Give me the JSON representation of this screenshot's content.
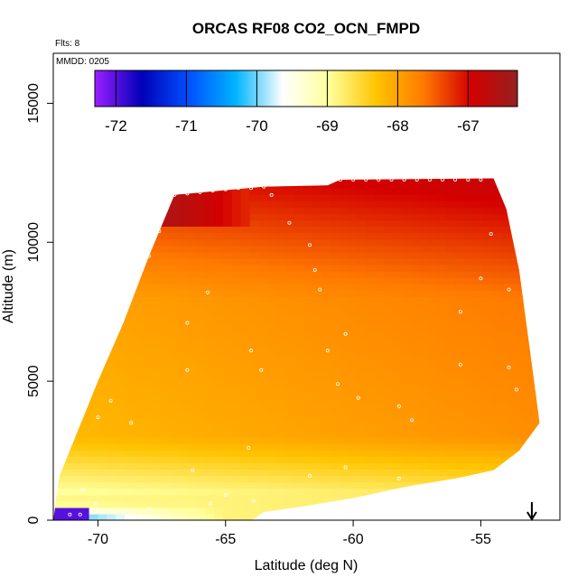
{
  "chart_data": {
    "type": "heatmap",
    "title": "ORCAS RF08 CO2_OCN_FMPD",
    "xlabel": "Latitude (deg N)",
    "ylabel": "Altitude (m)",
    "xlim": [
      -71.75,
      -51.9
    ],
    "ylim": [
      0,
      16800
    ],
    "x_ticks": [
      -70,
      -65,
      -60,
      -55
    ],
    "x_tick_labels": [
      "-70",
      "-65",
      "-60",
      "-55"
    ],
    "y_ticks": [
      0,
      5000,
      10000,
      15000
    ],
    "y_tick_labels": [
      "0",
      "5000",
      "10000",
      "15000"
    ],
    "flights_label": "Flts: 8",
    "date_label": "MMDD: 0205",
    "colorbar": {
      "range": [
        -72.3,
        -66.3
      ],
      "ticks": [
        -72,
        -71,
        -70,
        -69,
        -68,
        -67
      ],
      "tick_labels": [
        "-72",
        "-71",
        "-70",
        "-69",
        "-68",
        "-67"
      ],
      "colors": [
        "#9c1fff",
        "#0000b8",
        "#0050ff",
        "#00b4ff",
        "#ffffff",
        "#ffff99",
        "#ffc400",
        "#ff7a00",
        "#d40000",
        "#962020"
      ]
    },
    "arrow_marker": {
      "latitude": -53.0,
      "direction": "down"
    },
    "top_boundary": [
      [
        -71.5,
        1600
      ],
      [
        -70.0,
        5000
      ],
      [
        -69.0,
        7100
      ],
      [
        -68.0,
        9500
      ],
      [
        -67.0,
        11700
      ],
      [
        -63.5,
        12000
      ],
      [
        -61.0,
        12050
      ],
      [
        -60.5,
        12250
      ],
      [
        -54.5,
        12300
      ],
      [
        -54.0,
        11200
      ],
      [
        -53.5,
        9000
      ],
      [
        -53.0,
        5600
      ],
      [
        -52.7,
        3500
      ],
      [
        -53.5,
        2500
      ],
      [
        -54.5,
        1800
      ],
      [
        -56.0,
        1500
      ],
      [
        -58.0,
        1200
      ],
      [
        -60.0,
        800
      ],
      [
        -62.0,
        500
      ],
      [
        -63.5,
        300
      ],
      [
        -64.0,
        0
      ]
    ],
    "field_trends": {
      "surface_cold_region_value": -70.5,
      "low_altitude_value": -69,
      "mid_altitude_value": -68.2,
      "high_altitude_value": -67.2
    },
    "sample_points": [
      [
        -67.0,
        11700
      ],
      [
        -66.5,
        11750
      ],
      [
        -66.0,
        11800
      ],
      [
        -65.5,
        11850
      ],
      [
        -65.0,
        11900
      ],
      [
        -64.5,
        11950
      ],
      [
        -64.0,
        11950
      ],
      [
        -63.5,
        12000
      ],
      [
        -60.5,
        12250
      ],
      [
        -60.0,
        12250
      ],
      [
        -59.5,
        12250
      ],
      [
        -59.0,
        12250
      ],
      [
        -58.5,
        12250
      ],
      [
        -58.0,
        12250
      ],
      [
        -57.5,
        12250
      ],
      [
        -57.0,
        12250
      ],
      [
        -56.5,
        12250
      ],
      [
        -56.0,
        12250
      ],
      [
        -55.5,
        12250
      ],
      [
        -55.0,
        12250
      ],
      [
        -67.6,
        10400
      ],
      [
        -68.0,
        9500
      ],
      [
        -68.5,
        8600
      ],
      [
        -69.5,
        7100
      ],
      [
        -65.7,
        8200
      ],
      [
        -63.2,
        11700
      ],
      [
        -62.5,
        10700
      ],
      [
        -61.7,
        9900
      ],
      [
        -61.5,
        9000
      ],
      [
        -61.3,
        8300
      ],
      [
        -60.3,
        6700
      ],
      [
        -64.0,
        6100
      ],
      [
        -66.5,
        7100
      ],
      [
        -66.5,
        5400
      ],
      [
        -63.6,
        5400
      ],
      [
        -61.0,
        6100
      ],
      [
        -60.6,
        4900
      ],
      [
        -59.8,
        4400
      ],
      [
        -58.2,
        4100
      ],
      [
        -57.7,
        3600
      ],
      [
        -55.8,
        5600
      ],
      [
        -55.8,
        7500
      ],
      [
        -55.0,
        8700
      ],
      [
        -54.6,
        10300
      ],
      [
        -53.9,
        8300
      ],
      [
        -53.9,
        5500
      ],
      [
        -53.6,
        4700
      ],
      [
        -69.5,
        4300
      ],
      [
        -70.0,
        3700
      ],
      [
        -68.7,
        3500
      ],
      [
        -66.3,
        1800
      ],
      [
        -64.1,
        2600
      ],
      [
        -61.7,
        1600
      ],
      [
        -58.2,
        1500
      ],
      [
        -60.3,
        1900
      ],
      [
        -70.6,
        1100
      ],
      [
        -70.1,
        600
      ],
      [
        -69.0,
        300
      ],
      [
        -68.0,
        400
      ],
      [
        -65.0,
        900
      ],
      [
        -65.6,
        600
      ],
      [
        -63.9,
        700
      ],
      [
        -71.1,
        200
      ],
      [
        -70.7,
        200
      ]
    ]
  }
}
